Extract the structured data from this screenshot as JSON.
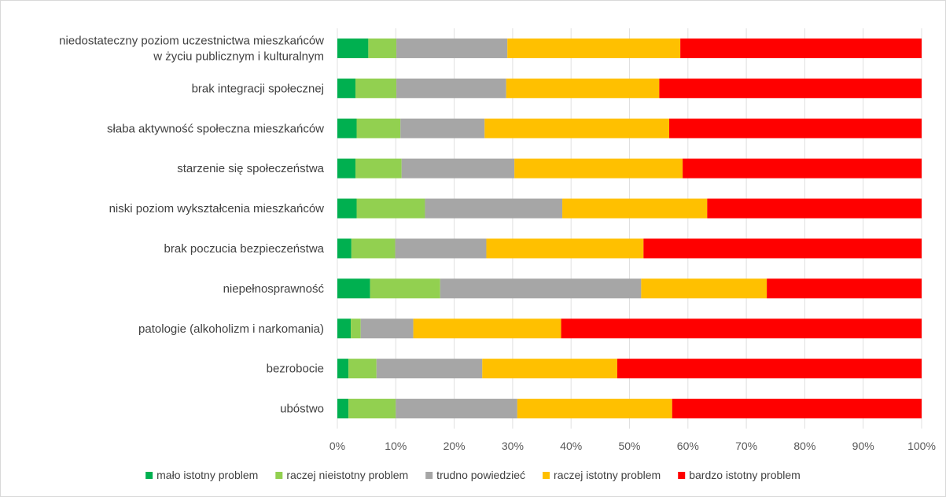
{
  "chart_data": {
    "type": "bar",
    "orientation": "horizontal",
    "stacked": "percent",
    "title": "",
    "xlabel": "",
    "ylabel": "",
    "xlim": [
      0,
      100
    ],
    "x_ticks": [
      "0%",
      "10%",
      "20%",
      "30%",
      "40%",
      "50%",
      "60%",
      "70%",
      "80%",
      "90%",
      "100%"
    ],
    "grid": true,
    "legend_position": "bottom",
    "categories": [
      [
        "niedostateczny poziom uczestnictwa mieszkańców",
        "w życiu publicznym i kulturalnym"
      ],
      [
        "brak integracji społecznej"
      ],
      [
        "słaba aktywność społeczna mieszkańców"
      ],
      [
        "starzenie się społeczeństwa"
      ],
      [
        "niski poziom wykształcenia mieszkańców"
      ],
      [
        "brak poczucia bezpieczeństwa"
      ],
      [
        "niepełnosprawność"
      ],
      [
        "patologie (alkoholizm i narkomania)"
      ],
      [
        "bezrobocie"
      ],
      [
        "ubóstwo"
      ]
    ],
    "series": [
      {
        "name": "mało istotny problem",
        "color": "#00b050",
        "values": [
          5.3,
          3.1,
          3.3,
          3.1,
          3.3,
          2.4,
          5.6,
          2.3,
          1.9,
          1.9
        ]
      },
      {
        "name": "raczej nieistotny problem",
        "color": "#92d050",
        "values": [
          4.8,
          7.0,
          7.5,
          7.9,
          11.7,
          7.5,
          12.0,
          1.7,
          4.8,
          8.1
        ]
      },
      {
        "name": "trudno powiedzieć",
        "color": "#a6a6a6",
        "values": [
          19.0,
          18.8,
          14.4,
          19.3,
          23.5,
          15.6,
          34.4,
          9.0,
          18.1,
          20.8
        ]
      },
      {
        "name": "raczej istotny problem",
        "color": "#ffc000",
        "values": [
          29.6,
          26.2,
          31.6,
          28.8,
          24.8,
          26.9,
          21.5,
          25.3,
          23.1,
          26.5
        ]
      },
      {
        "name": "bardzo istotny problem",
        "color": "#ff0000",
        "values": [
          41.3,
          44.9,
          43.2,
          40.9,
          36.7,
          47.6,
          26.5,
          61.7,
          52.1,
          42.7
        ]
      }
    ]
  }
}
